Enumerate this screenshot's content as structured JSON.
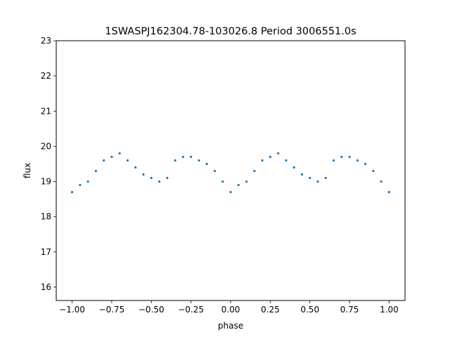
{
  "chart_data": {
    "type": "scatter",
    "title": "1SWASPJ162304.78-103026.8 Period 3006551.0s",
    "xlabel": "phase",
    "ylabel": "flux",
    "xlim": [
      -1.1,
      1.1
    ],
    "ylim": [
      15.62,
      23.0
    ],
    "xticks": [
      -1.0,
      -0.75,
      -0.5,
      -0.25,
      0.0,
      0.25,
      0.5,
      0.75,
      1.0
    ],
    "xtick_labels": [
      "−1.00",
      "−0.75",
      "−0.50",
      "−0.25",
      "0.00",
      "0.25",
      "0.50",
      "0.75",
      "1.00"
    ],
    "yticks": [
      16,
      17,
      18,
      19,
      20,
      21,
      22,
      23
    ],
    "ytick_labels": [
      "16",
      "17",
      "18",
      "19",
      "20",
      "21",
      "22",
      "23"
    ],
    "grid": false,
    "legend": "none",
    "marker_color": "#1f77b4",
    "series": [
      {
        "points": [
          [
            -1.0,
            18.7
          ],
          [
            -0.95,
            18.9
          ],
          [
            -0.9,
            19.0
          ],
          [
            -0.85,
            19.3
          ],
          [
            -0.8,
            19.6
          ],
          [
            -0.75,
            19.7
          ],
          [
            -0.7,
            19.8
          ],
          [
            -0.65,
            19.6
          ],
          [
            -0.6,
            19.4
          ],
          [
            -0.55,
            19.2
          ],
          [
            -0.5,
            19.1
          ],
          [
            -0.45,
            19.0
          ],
          [
            -0.4,
            19.1
          ],
          [
            -0.35,
            19.6
          ],
          [
            -0.3,
            19.7
          ],
          [
            -0.25,
            19.7
          ],
          [
            -0.2,
            19.6
          ],
          [
            -0.15,
            19.5
          ],
          [
            -0.1,
            19.3
          ],
          [
            -0.05,
            19.0
          ],
          [
            0.0,
            18.7
          ],
          [
            0.05,
            18.9
          ],
          [
            0.1,
            19.0
          ],
          [
            0.15,
            19.3
          ],
          [
            0.2,
            19.6
          ],
          [
            0.25,
            19.7
          ],
          [
            0.3,
            19.8
          ],
          [
            0.35,
            19.6
          ],
          [
            0.4,
            19.4
          ],
          [
            0.45,
            19.2
          ],
          [
            0.5,
            19.1
          ],
          [
            0.55,
            19.0
          ],
          [
            0.6,
            19.1
          ],
          [
            0.65,
            19.6
          ],
          [
            0.7,
            19.7
          ],
          [
            0.75,
            19.7
          ],
          [
            0.8,
            19.6
          ],
          [
            0.85,
            19.5
          ],
          [
            0.9,
            19.3
          ],
          [
            0.95,
            19.0
          ],
          [
            1.0,
            18.7
          ]
        ]
      }
    ]
  }
}
